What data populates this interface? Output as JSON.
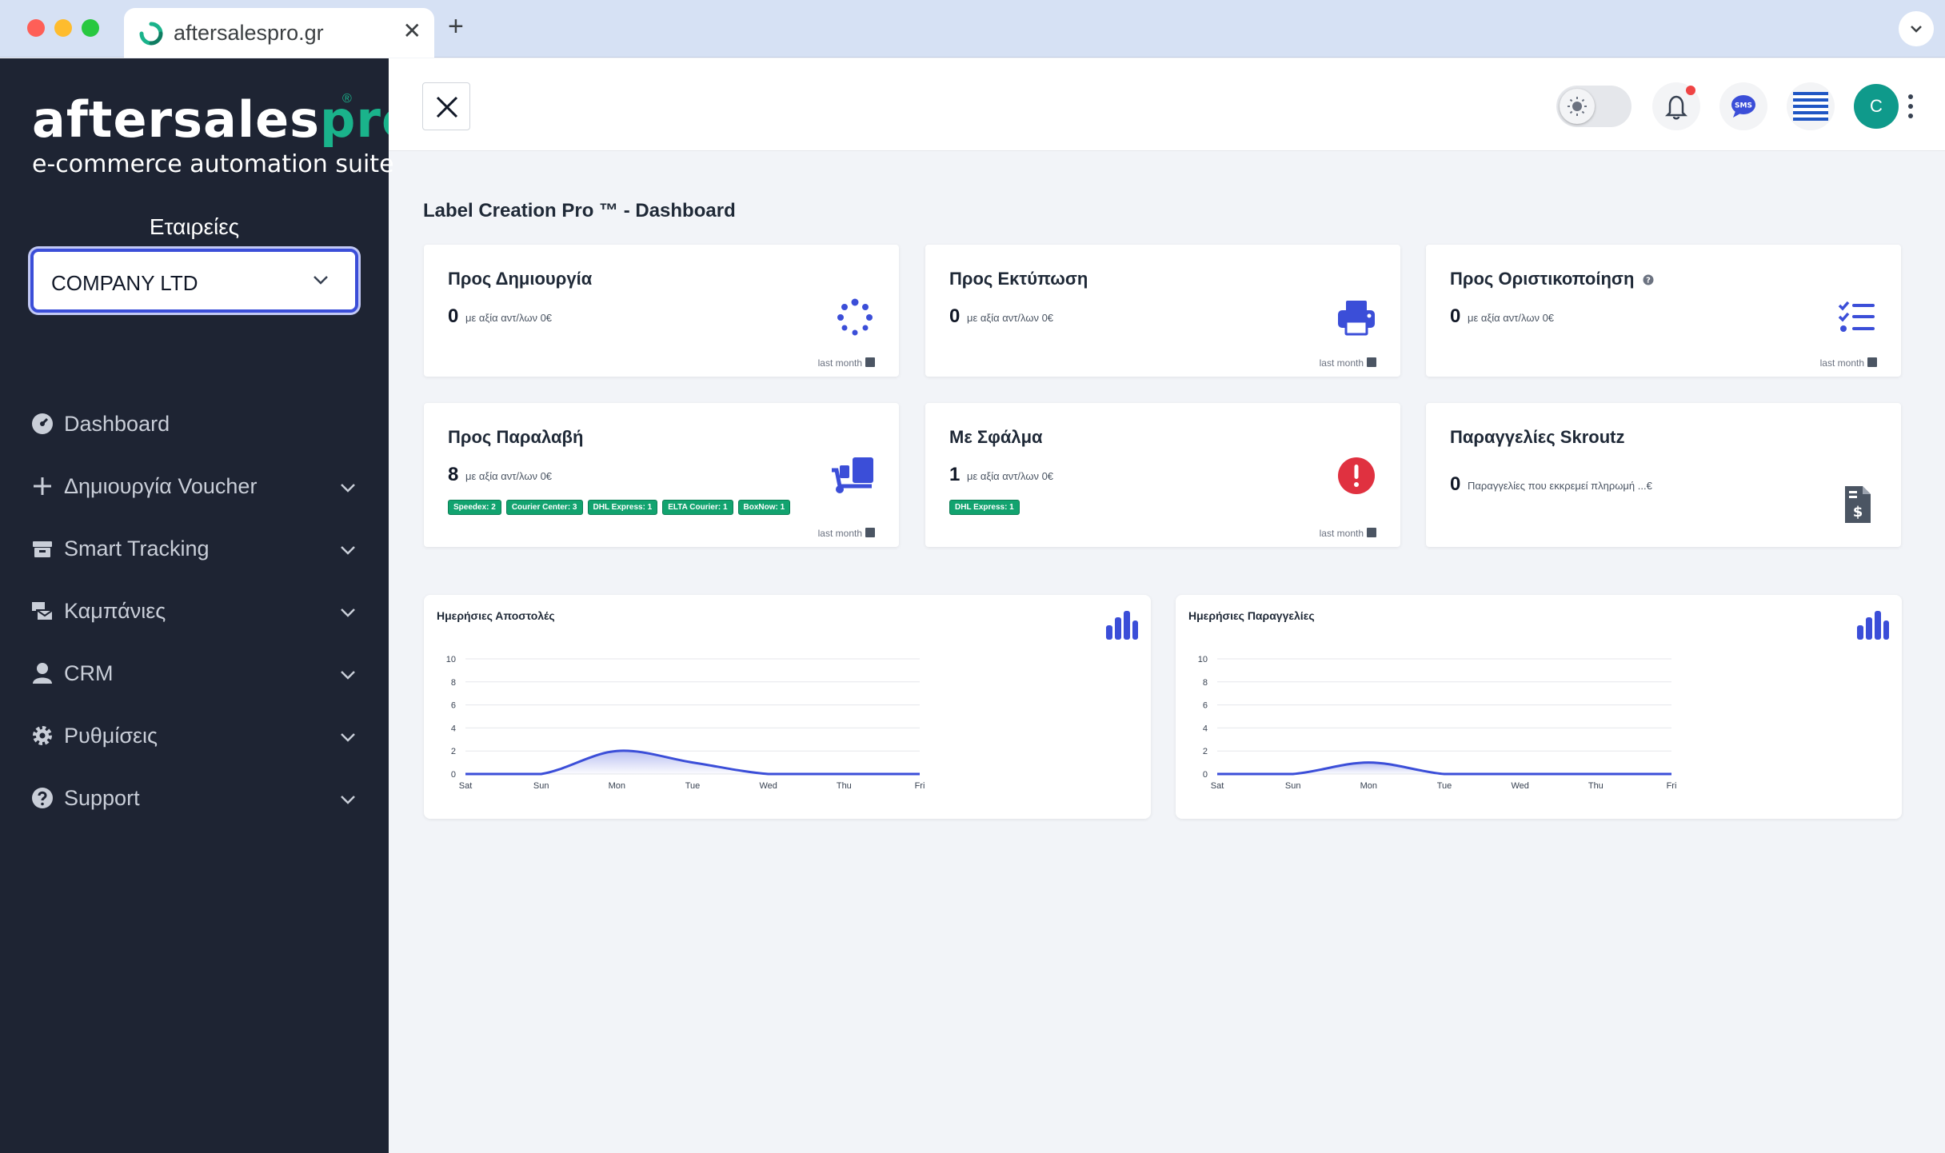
{
  "browser": {
    "tab_title": "aftersalespro.gr",
    "close_glyph": "✕",
    "new_tab_glyph": "+",
    "menu_glyph": "⌄"
  },
  "sidebar": {
    "brand_main": "aftersales",
    "brand_pro": "pro",
    "brand_reg": "®",
    "brand_tagline": "e-commerce automation suite",
    "companies_label": "Εταιρείες",
    "company_selected": "COMPANY LTD",
    "items": [
      {
        "label": "Dashboard",
        "icon": "gauge-icon",
        "has_submenu": false
      },
      {
        "label": "Δημιουργία Voucher",
        "icon": "plus-icon",
        "has_submenu": true
      },
      {
        "label": "Smart Tracking",
        "icon": "box-icon",
        "has_submenu": true
      },
      {
        "label": "Καμπάνιες",
        "icon": "mail-bulk-icon",
        "has_submenu": true
      },
      {
        "label": "CRM",
        "icon": "user-icon",
        "has_submenu": true
      },
      {
        "label": "Ρυθμίσεις",
        "icon": "gear-icon",
        "has_submenu": true
      },
      {
        "label": "Support",
        "icon": "question-circle-icon",
        "has_submenu": true
      }
    ]
  },
  "header": {
    "avatar_initial": "C",
    "sms_label": "SMS"
  },
  "main": {
    "page_title": "Label Creation Pro ™ - Dashboard",
    "cards": [
      {
        "title": "Προς Δημιουργία",
        "count": "0",
        "sub": "με αξία αντ/λων 0€",
        "meta": "last month",
        "icon": "spinner-icon"
      },
      {
        "title": "Προς Εκτύπωση",
        "count": "0",
        "sub": "με αξία αντ/λων 0€",
        "meta": "last month",
        "icon": "printer-icon"
      },
      {
        "title": "Προς Οριστικοποίηση",
        "count": "0",
        "sub": "με αξία αντ/λων 0€",
        "meta": "last month",
        "icon": "tasks-icon"
      },
      {
        "title": "Προς Παραλαβή",
        "count": "8",
        "sub": "με αξία αντ/λων 0€",
        "meta": "last month",
        "icon": "dolly-icon",
        "badges": [
          "Speedex: 2",
          "Courier Center: 3",
          "DHL Express: 1",
          "ELTA Courier: 1",
          "BoxNow: 1"
        ]
      },
      {
        "title": "Με Σφάλμα",
        "count": "1",
        "sub": "με αξία αντ/λων 0€",
        "meta": "last month",
        "icon": "error-icon",
        "badges": [
          "DHL Express: 1"
        ]
      },
      {
        "title": "Παραγγελίες Skroutz",
        "count": "0",
        "sub": "Παραγγελίες που εκκρεμεί πληρωμή ...€",
        "meta": "",
        "icon": "invoice-dollar-icon"
      }
    ]
  },
  "colors": {
    "accent": "#3b4ed8",
    "brand_green": "#1ab38b",
    "sidebar_bg": "#1e2433",
    "badge_green": "#12a36f",
    "error_red": "#e03140"
  },
  "chart_data": [
    {
      "type": "area",
      "title": "Ημερήσιες Αποστολές",
      "categories": [
        "Sat",
        "Sun",
        "Mon",
        "Tue",
        "Wed",
        "Thu",
        "Fri"
      ],
      "series": [
        {
          "values": [
            0,
            0,
            2,
            1,
            0,
            0,
            0
          ]
        }
      ],
      "ylim": [
        0,
        10
      ],
      "yticks": [
        "0",
        "2",
        "4",
        "6",
        "8",
        "10"
      ],
      "grid": true
    },
    {
      "type": "area",
      "title": "Ημερήσιες Παραγγελίες",
      "categories": [
        "Sat",
        "Sun",
        "Mon",
        "Tue",
        "Wed",
        "Thu",
        "Fri"
      ],
      "series": [
        {
          "values": [
            0,
            0,
            1,
            0,
            0,
            0,
            0
          ]
        }
      ],
      "ylim": [
        0,
        10
      ],
      "yticks": [
        "0",
        "2",
        "4",
        "6",
        "8",
        "10"
      ],
      "grid": true
    }
  ]
}
